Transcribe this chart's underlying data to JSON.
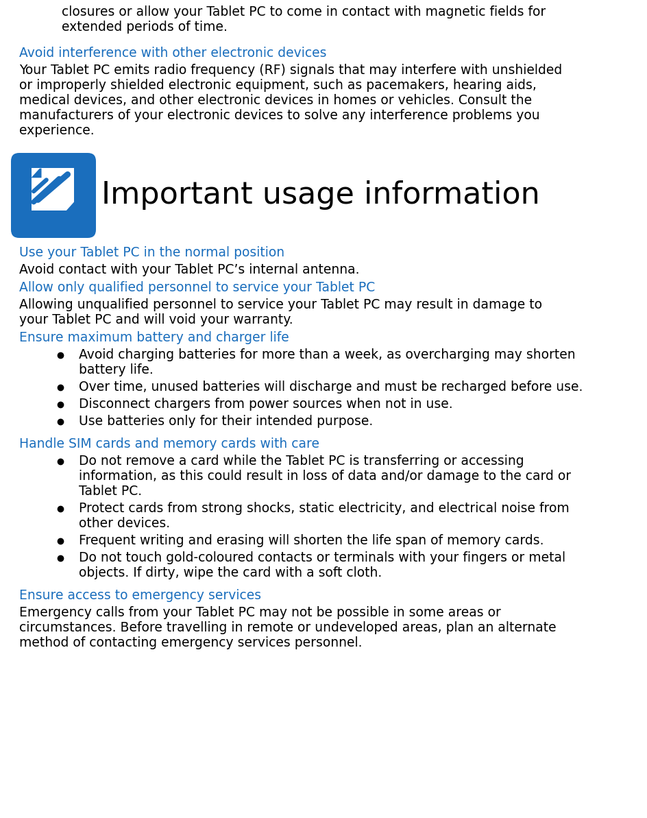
{
  "bg_color": "#ffffff",
  "text_color": "#000000",
  "heading_color": "#1a6ebd",
  "title_text": "Important usage information",
  "title_color": "#000000",
  "title_fontsize": 32,
  "body_fontsize": 13.5,
  "heading_fontsize": 13.5,
  "icon_color": "#1a6ebd",
  "content": [
    {
      "type": "indented",
      "text": "closures or allow your Tablet PC to come in contact with magnetic fields for\nextended periods of time.",
      "color": "#000000"
    },
    {
      "type": "spacer",
      "size": 12
    },
    {
      "type": "heading",
      "text": "Avoid interference with other electronic devices",
      "color": "#1a6ebd"
    },
    {
      "type": "body",
      "text": "Your Tablet PC emits radio frequency (RF) signals that may interfere with unshielded\nor improperly shielded electronic equipment, such as pacemakers, hearing aids,\nmedical devices, and other electronic devices in homes or vehicles. Consult the\nmanufacturers of your electronic devices to solve any interference problems you\nexperience.",
      "color": "#000000"
    },
    {
      "type": "spacer",
      "size": 28
    },
    {
      "type": "title_row",
      "text": "Important usage information"
    },
    {
      "type": "spacer",
      "size": 14
    },
    {
      "type": "heading",
      "text": "Use your Tablet PC in the normal position",
      "color": "#1a6ebd"
    },
    {
      "type": "body",
      "text": "Avoid contact with your Tablet PC’s internal antenna.",
      "color": "#000000"
    },
    {
      "type": "heading",
      "text": "Allow only qualified personnel to service your Tablet PC",
      "color": "#1a6ebd"
    },
    {
      "type": "body",
      "text": "Allowing unqualified personnel to service your Tablet PC may result in damage to\nyour Tablet PC and will void your warranty.",
      "color": "#000000"
    },
    {
      "type": "heading",
      "text": "Ensure maximum battery and charger life",
      "color": "#1a6ebd"
    },
    {
      "type": "bullet",
      "text": "Avoid charging batteries for more than a week, as overcharging may shorten\nbattery life.",
      "color": "#000000"
    },
    {
      "type": "bullet",
      "text": "Over time, unused batteries will discharge and must be recharged before use.",
      "color": "#000000"
    },
    {
      "type": "bullet",
      "text": "Disconnect chargers from power sources when not in use.",
      "color": "#000000"
    },
    {
      "type": "bullet",
      "text": "Use batteries only for their intended purpose.",
      "color": "#000000"
    },
    {
      "type": "spacer",
      "size": 8
    },
    {
      "type": "heading",
      "text": "Handle SIM cards and memory cards with care",
      "color": "#1a6ebd"
    },
    {
      "type": "bullet",
      "text": "Do not remove a card while the Tablet PC is transferring or accessing\ninformation, as this could result in loss of data and/or damage to the card or\nTablet PC.",
      "color": "#000000"
    },
    {
      "type": "bullet",
      "text": "Protect cards from strong shocks, static electricity, and electrical noise from\nother devices.",
      "color": "#000000"
    },
    {
      "type": "bullet",
      "text": "Frequent writing and erasing will shorten the life span of memory cards.",
      "color": "#000000"
    },
    {
      "type": "bullet",
      "text": "Do not touch gold-coloured contacts or terminals with your fingers or metal\nobjects. If dirty, wipe the card with a soft cloth.",
      "color": "#000000"
    },
    {
      "type": "spacer",
      "size": 8
    },
    {
      "type": "heading",
      "text": "Ensure access to emergency services",
      "color": "#1a6ebd"
    },
    {
      "type": "body",
      "text": "Emergency calls from your Tablet PC may not be possible in some areas or\ncircumstances. Before travelling in remote or undeveloped areas, plan an alternate\nmethod of contacting emergency services personnel.",
      "color": "#000000"
    }
  ]
}
